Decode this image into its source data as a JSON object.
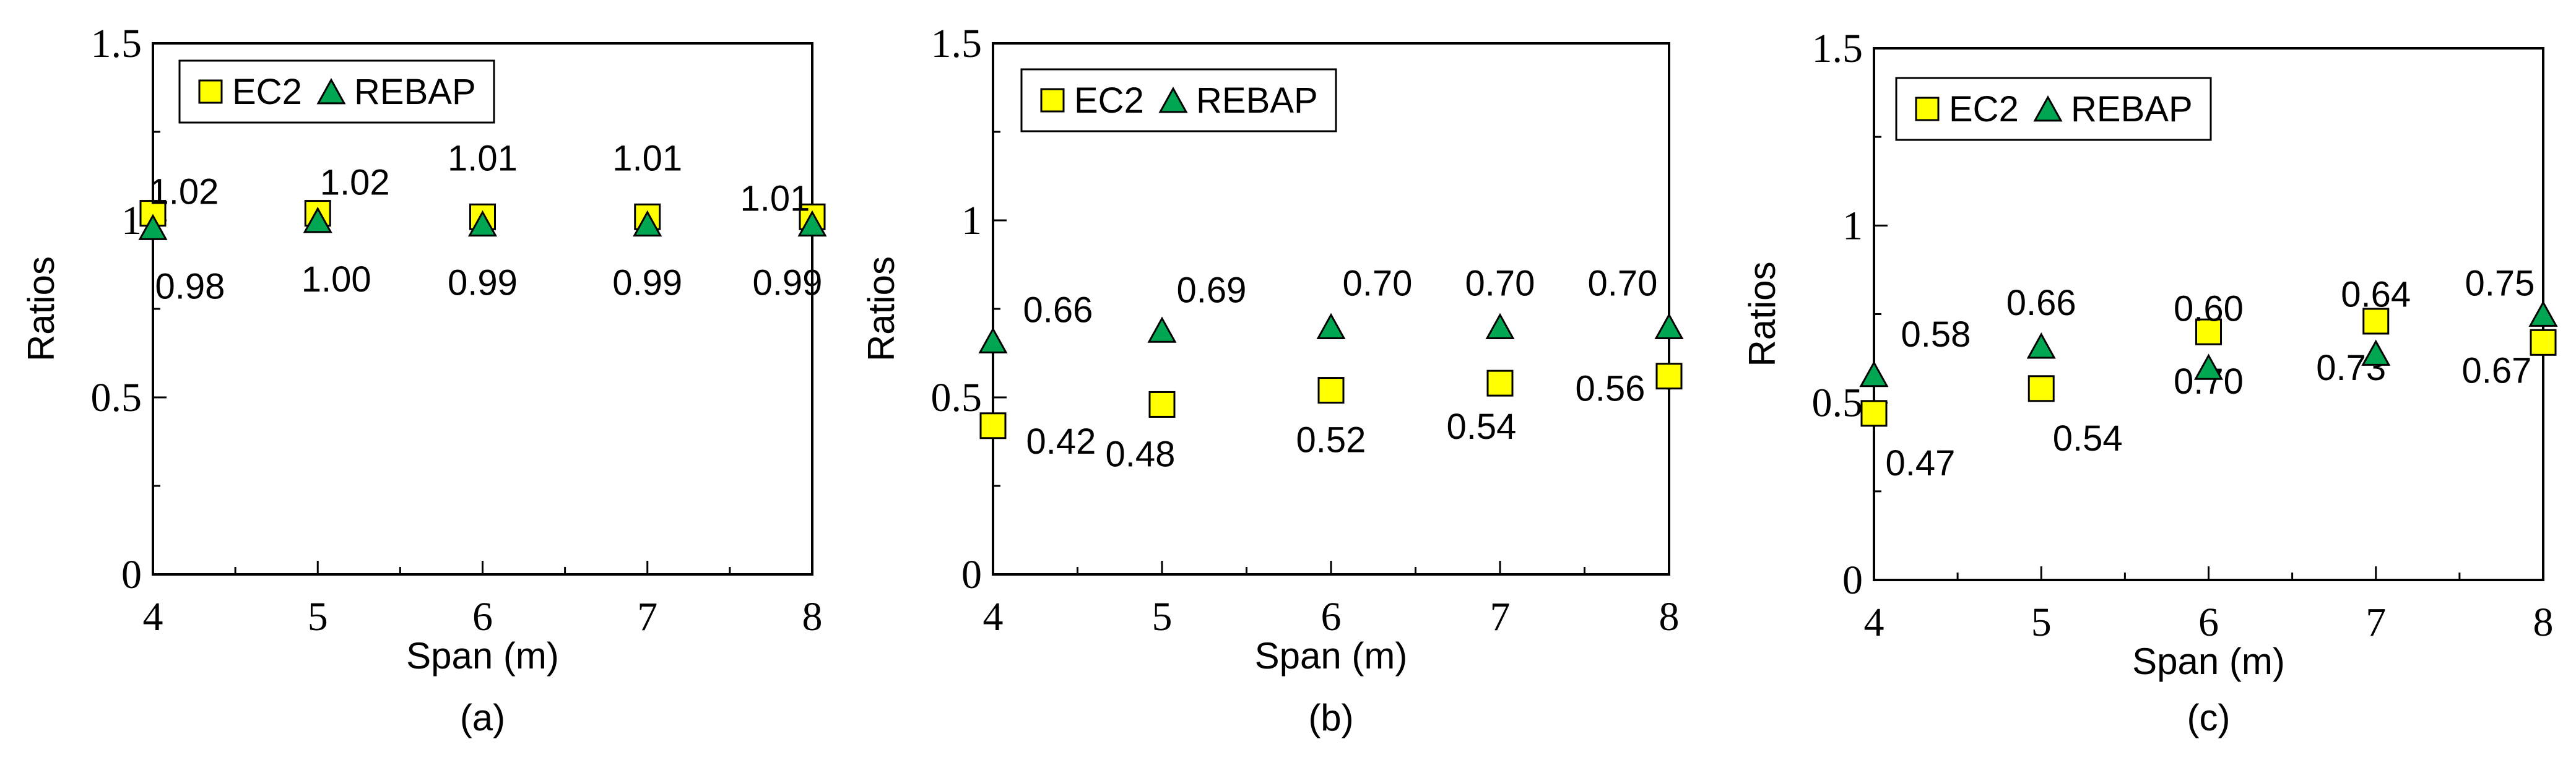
{
  "chart_data": [
    {
      "type": "scatter",
      "panel_label": "(a)",
      "xlabel": "Span (m)",
      "ylabel": "Ratios",
      "xlim": [
        4,
        8
      ],
      "ylim": [
        0,
        1.5
      ],
      "x_ticks": [
        "4",
        "5",
        "6",
        "7",
        "8"
      ],
      "y_ticks": [
        "0",
        "0.5",
        "1",
        "1.5"
      ],
      "legend": "top-left",
      "grid": false,
      "x": [
        4,
        5,
        6,
        7,
        8
      ],
      "series": [
        {
          "name": "EC2",
          "marker": "square",
          "color": "#FFFF00",
          "values": [
            1.02,
            1.02,
            1.01,
            1.01,
            1.01
          ],
          "labels": [
            "1.02",
            "1.02",
            "1.01",
            "1.01",
            "1.01"
          ]
        },
        {
          "name": "REBAP",
          "marker": "triangle",
          "color": "#00A651",
          "values": [
            0.98,
            1.0,
            0.99,
            0.99,
            0.99
          ],
          "labels": [
            "0.98",
            "1.00",
            "0.99",
            "0.99",
            "0.99"
          ]
        }
      ]
    },
    {
      "type": "scatter",
      "panel_label": "(b)",
      "xlabel": "Span (m)",
      "ylabel": "Ratios",
      "xlim": [
        4,
        8
      ],
      "ylim": [
        0,
        1.5
      ],
      "x_ticks": [
        "4",
        "5",
        "6",
        "7",
        "8"
      ],
      "y_ticks": [
        "0",
        "0.5",
        "1",
        "1.5"
      ],
      "legend": "top-left",
      "grid": false,
      "x": [
        4,
        5,
        6,
        7,
        8
      ],
      "series": [
        {
          "name": "EC2",
          "marker": "square",
          "color": "#FFFF00",
          "values": [
            0.42,
            0.48,
            0.52,
            0.54,
            0.56
          ],
          "labels": [
            "0.42",
            "0.48",
            "0.52",
            "0.54",
            "0.56"
          ]
        },
        {
          "name": "REBAP",
          "marker": "triangle",
          "color": "#00A651",
          "values": [
            0.66,
            0.69,
            0.7,
            0.7,
            0.7
          ],
          "labels": [
            "0.66",
            "0.69",
            "0.70",
            "0.70",
            "0.70"
          ]
        }
      ]
    },
    {
      "type": "scatter",
      "panel_label": "(c)",
      "xlabel": "Span (m)",
      "ylabel": "Ratios",
      "xlim": [
        4,
        8
      ],
      "ylim": [
        0,
        1.5
      ],
      "x_ticks": [
        "4",
        "5",
        "6",
        "7",
        "8"
      ],
      "y_ticks": [
        "0",
        "0.5",
        "1",
        "1.5"
      ],
      "legend": "top-left",
      "grid": false,
      "x": [
        4,
        5,
        6,
        7,
        8
      ],
      "series": [
        {
          "name": "EC2",
          "marker": "square",
          "color": "#FFFF00",
          "values": [
            0.47,
            0.54,
            0.7,
            0.73,
            0.67
          ],
          "labels": [
            "0.47",
            "0.54",
            "0.70",
            "0.73",
            "0.67"
          ]
        },
        {
          "name": "REBAP",
          "marker": "triangle",
          "color": "#00A651",
          "values": [
            0.58,
            0.66,
            0.6,
            0.64,
            0.75
          ],
          "labels": [
            "0.58",
            "0.66",
            "0.60",
            "0.64",
            "0.75"
          ]
        }
      ]
    }
  ]
}
